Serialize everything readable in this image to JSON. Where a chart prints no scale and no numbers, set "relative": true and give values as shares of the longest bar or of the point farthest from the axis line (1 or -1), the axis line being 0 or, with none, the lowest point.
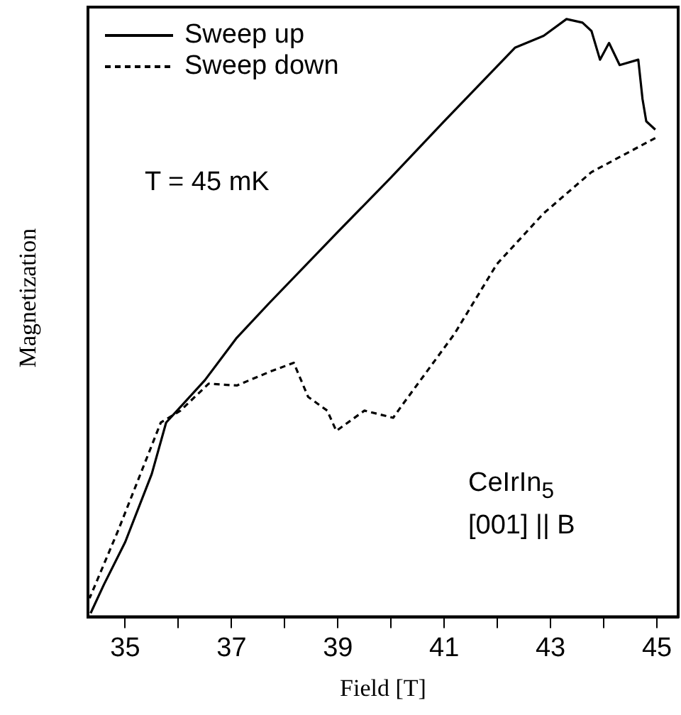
{
  "chart_data": {
    "type": "line",
    "xlabel": "Field [T]",
    "ylabel": "Magnetization",
    "relative": true,
    "grid": false,
    "legend": "top left",
    "xlim": [
      34.3,
      45.4
    ],
    "xticks": [
      35,
      {
        "value": 36,
        "label": null
      },
      37,
      {
        "value": 38,
        "label": null
      },
      39,
      {
        "value": 40,
        "label": null
      },
      41,
      {
        "value": 42,
        "label": null
      },
      43,
      {
        "value": 44,
        "label": null
      },
      45
    ],
    "annotations": [
      "T = 45 mK",
      "CeIrIn$_{5}$",
      "[001] || B"
    ],
    "series": [
      {
        "name": "Sweep up",
        "color": "#000000",
        "line_style": "solid",
        "x": [
          34.35,
          34.6,
          35.0,
          35.5,
          35.77,
          36.5,
          37.1,
          37.7,
          39,
          40,
          41,
          42.33,
          42.87,
          43.3,
          43.6,
          43.77,
          43.93,
          44.1,
          44.3,
          44.65,
          44.73,
          44.8,
          44.97
        ],
        "values": [
          0.006,
          0.054,
          0.125,
          0.239,
          0.325,
          0.396,
          0.467,
          0.524,
          0.644,
          0.735,
          0.829,
          0.952,
          0.972,
          1,
          0.994,
          0.98,
          0.932,
          0.96,
          0.923,
          0.932,
          0.866,
          0.829,
          0.815
        ]
      },
      {
        "name": "Sweep down",
        "color": "#000000",
        "line_style": "dashed",
        "x": [
          44.97,
          43.77,
          42.87,
          41.99,
          41.19,
          40.2,
          40.04,
          39.5,
          38.97,
          38.8,
          38.44,
          38.17,
          37.72,
          37.1,
          36.57,
          36.04,
          35.67,
          34.87,
          34.33
        ],
        "values": [
          0.801,
          0.744,
          0.675,
          0.59,
          0.473,
          0.353,
          0.333,
          0.345,
          0.311,
          0.345,
          0.368,
          0.425,
          0.41,
          0.387,
          0.39,
          0.345,
          0.325,
          0.145,
          0.031
        ]
      }
    ]
  }
}
